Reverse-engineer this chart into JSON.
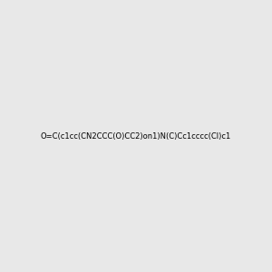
{
  "smiles": "O=C(c1cc(CN2CCC(O)CC2)on1)N(C)Cc1cccc(Cl)c1",
  "image_size": 300,
  "background_color": "#e8e8e8",
  "atom_colors": {
    "N": "#0000FF",
    "O": "#FF0000",
    "Cl": "#00AA00"
  }
}
